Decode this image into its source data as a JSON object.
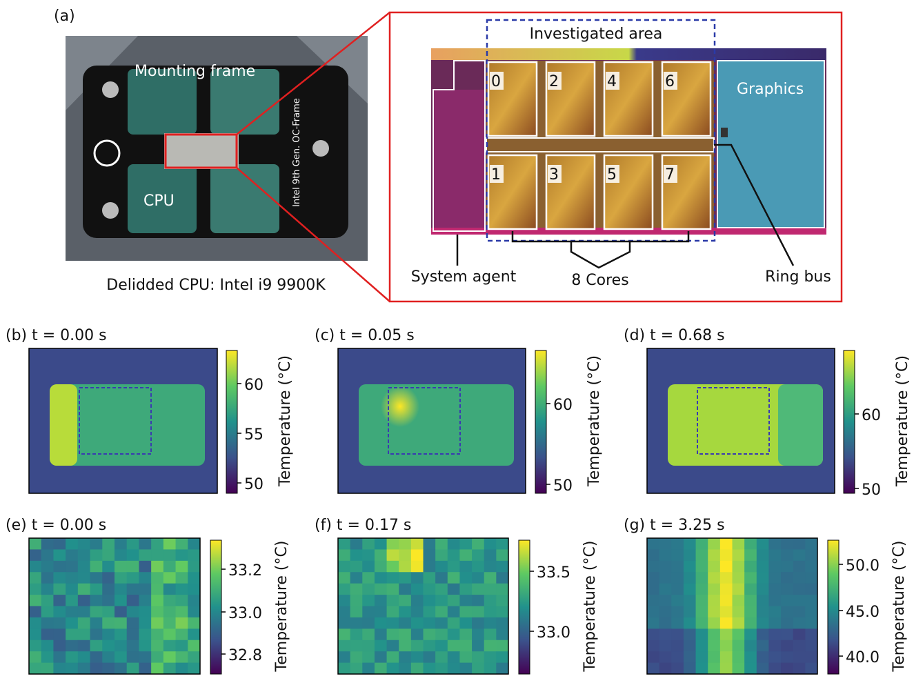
{
  "panel_a": {
    "label": "(a)",
    "photo_labels": {
      "frame": "Mounting frame",
      "cpu": "CPU",
      "oc_frame": "Intel 9th Gen. OC-Frame"
    },
    "photo_caption": "Delidded CPU: Intel i9 9900K",
    "die": {
      "investigated_area": "Investigated area",
      "cores": [
        "0",
        "2",
        "4",
        "6",
        "1",
        "3",
        "5",
        "7"
      ],
      "graphics": "Graphics",
      "system_agent": "System agent",
      "cores_label": "8 Cores",
      "ring_bus": "Ring bus"
    }
  },
  "panels": [
    {
      "label": "(b) t = 0.00 s",
      "colorbar_label": "Temperature (°C)",
      "ticks": [
        "60",
        "55",
        "50"
      ]
    },
    {
      "label": "(c) t = 0.05 s",
      "colorbar_label": "Temperature (°C)",
      "ticks": [
        "60",
        "50"
      ]
    },
    {
      "label": "(d) t = 0.68 s",
      "colorbar_label": "Temperature (°C)",
      "ticks": [
        "60",
        "50"
      ]
    },
    {
      "label": "(e) t = 0.00 s",
      "colorbar_label": "Temperature (°C)",
      "ticks": [
        "33.2",
        "33.0",
        "32.8"
      ]
    },
    {
      "label": "(f) t = 0.17 s",
      "colorbar_label": "Temperature (°C)",
      "ticks": [
        "33.5",
        "33.0"
      ]
    },
    {
      "label": "(g) t = 3.25 s",
      "colorbar_label": "Temperature (°C)",
      "ticks": [
        "50.0",
        "45.0",
        "40.0"
      ]
    }
  ]
}
